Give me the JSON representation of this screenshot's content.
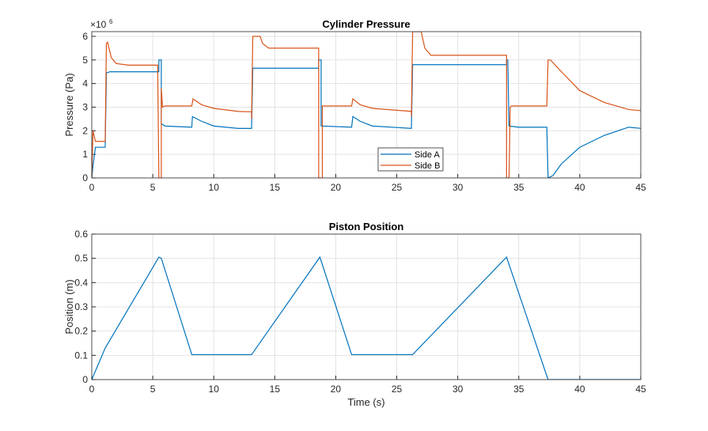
{
  "chart_data": [
    {
      "type": "line",
      "title": "Cylinder Pressure",
      "xlabel": "",
      "ylabel": "Pressure (Pa)",
      "exponent_label": "×10",
      "exponent": "6",
      "xlim": [
        0,
        45
      ],
      "ylim": [
        0,
        6.2
      ],
      "xticks": [
        0,
        5,
        10,
        15,
        20,
        25,
        30,
        35,
        40,
        45
      ],
      "yticks": [
        0,
        1,
        2,
        3,
        4,
        5,
        6
      ],
      "grid": true,
      "legend_position": "bottom-center",
      "series": [
        {
          "name": "Side A",
          "color": "#0072BD",
          "points": [
            [
              0,
              0
            ],
            [
              0.1,
              0.5
            ],
            [
              0.3,
              1.3
            ],
            [
              1.1,
              1.3
            ],
            [
              1.2,
              4.45
            ],
            [
              1.5,
              4.5
            ],
            [
              5.5,
              4.5
            ],
            [
              5.5,
              5.0
            ],
            [
              5.7,
              5.0
            ],
            [
              5.7,
              2.3
            ],
            [
              6,
              2.2
            ],
            [
              8.2,
              2.15
            ],
            [
              8.25,
              2.6
            ],
            [
              9,
              2.4
            ],
            [
              10,
              2.2
            ],
            [
              12,
              2.1
            ],
            [
              13.1,
              2.1
            ],
            [
              13.2,
              4.65
            ],
            [
              18.6,
              4.65
            ],
            [
              18.6,
              5
            ],
            [
              18.8,
              5
            ],
            [
              18.8,
              2.2
            ],
            [
              21.3,
              2.15
            ],
            [
              21.4,
              2.6
            ],
            [
              22,
              2.4
            ],
            [
              23,
              2.2
            ],
            [
              26.2,
              2.1
            ],
            [
              26.3,
              4.8
            ],
            [
              34,
              4.8
            ],
            [
              34,
              5
            ],
            [
              34.1,
              5
            ],
            [
              34.2,
              2.2
            ],
            [
              35,
              2.15
            ],
            [
              37.3,
              2.15
            ],
            [
              37.4,
              0
            ],
            [
              37.8,
              0.1
            ],
            [
              38.5,
              0.6
            ],
            [
              40,
              1.3
            ],
            [
              42,
              1.8
            ],
            [
              44,
              2.15
            ],
            [
              45,
              2.1
            ]
          ]
        },
        {
          "name": "Side B",
          "color": "#D95319",
          "points": [
            [
              0,
              0
            ],
            [
              0.1,
              2
            ],
            [
              0.3,
              1.55
            ],
            [
              1.1,
              1.55
            ],
            [
              1.2,
              5.7
            ],
            [
              1.3,
              5.75
            ],
            [
              1.6,
              5.1
            ],
            [
              2,
              4.85
            ],
            [
              3,
              4.78
            ],
            [
              5.4,
              4.78
            ],
            [
              5.5,
              0
            ],
            [
              5.7,
              0
            ],
            [
              5.7,
              3.8
            ],
            [
              5.8,
              3.0
            ],
            [
              6,
              3.05
            ],
            [
              8.2,
              3.05
            ],
            [
              8.3,
              3.35
            ],
            [
              9,
              3.1
            ],
            [
              10,
              2.95
            ],
            [
              12,
              2.82
            ],
            [
              13.1,
              2.8
            ],
            [
              13.1,
              2.5
            ],
            [
              13.2,
              6.0
            ],
            [
              13.8,
              6.0
            ],
            [
              14,
              5.7
            ],
            [
              14.5,
              5.5
            ],
            [
              18.6,
              5.5
            ],
            [
              18.6,
              0
            ],
            [
              18.9,
              0
            ],
            [
              18.9,
              3.05
            ],
            [
              21.3,
              3.05
            ],
            [
              21.4,
              3.35
            ],
            [
              22,
              3.1
            ],
            [
              23,
              2.95
            ],
            [
              26.2,
              2.82
            ],
            [
              26.2,
              2.6
            ],
            [
              26.3,
              6.2
            ],
            [
              27,
              6.2
            ],
            [
              27.3,
              5.5
            ],
            [
              27.8,
              5.2
            ],
            [
              34,
              5.2
            ],
            [
              34,
              0
            ],
            [
              34.2,
              0
            ],
            [
              34.3,
              3.0
            ],
            [
              34.4,
              3.05
            ],
            [
              37.3,
              3.05
            ],
            [
              37.4,
              5.0
            ],
            [
              37.6,
              5.0
            ],
            [
              38.5,
              4.5
            ],
            [
              40,
              3.7
            ],
            [
              42,
              3.2
            ],
            [
              44,
              2.9
            ],
            [
              45,
              2.85
            ]
          ]
        }
      ]
    },
    {
      "type": "line",
      "title": "Piston Position",
      "xlabel": "Time (s)",
      "ylabel": "Position (m)",
      "xlim": [
        0,
        45
      ],
      "ylim": [
        0,
        0.6
      ],
      "xticks": [
        0,
        5,
        10,
        15,
        20,
        25,
        30,
        35,
        40,
        45
      ],
      "yticks": [
        0,
        0.1,
        0.2,
        0.3,
        0.4,
        0.5,
        0.6
      ],
      "grid": true,
      "series": [
        {
          "name": "Position",
          "color": "#0072BD",
          "points": [
            [
              0,
              0
            ],
            [
              1.1,
              0.13
            ],
            [
              5.5,
              0.505
            ],
            [
              5.7,
              0.5
            ],
            [
              8.2,
              0.103
            ],
            [
              13.1,
              0.103
            ],
            [
              18.7,
              0.505
            ],
            [
              21.3,
              0.103
            ],
            [
              26.3,
              0.103
            ],
            [
              34,
              0.505
            ],
            [
              37.4,
              0
            ],
            [
              45,
              0
            ]
          ]
        }
      ]
    }
  ]
}
